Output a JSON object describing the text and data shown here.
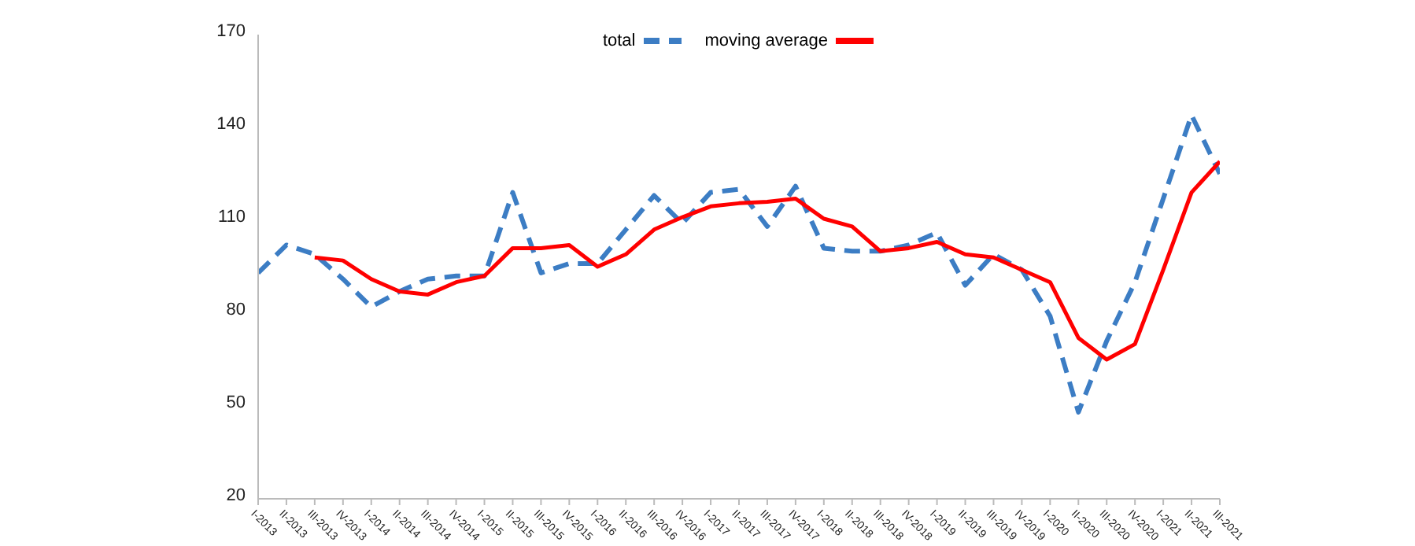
{
  "chart_data": {
    "type": "line",
    "categories": [
      "I-2013",
      "II-2013",
      "III-2013",
      "IV-2013",
      "I-2014",
      "II-2014",
      "III-2014",
      "IV-2014",
      "I-2015",
      "II-2015",
      "III-2015",
      "IV-2015",
      "I-2016",
      "II-2016",
      "III-2016",
      "IV-2016",
      "I-2017",
      "II-2017",
      "III-2017",
      "IV-2017",
      "I-2018",
      "II-2018",
      "III-2018",
      "IV-2018",
      "I-2019",
      "II-2019",
      "III-2019",
      "IV-2019",
      "I-2020",
      "II-2020",
      "III-2020",
      "IV-2020",
      "I-2021",
      "II-2021",
      "III-2021"
    ],
    "series": [
      {
        "name": "total",
        "color": "#3c7dc4",
        "line_style": "dashed",
        "values": [
          93,
          102,
          99,
          91,
          82,
          87,
          91,
          92,
          92,
          119,
          93,
          96,
          96,
          107,
          118,
          109,
          119,
          120,
          108,
          121,
          101,
          100,
          100,
          102,
          106,
          89,
          99,
          94,
          79,
          48,
          71,
          90,
          117,
          144,
          125
        ]
      },
      {
        "name": "moving average",
        "color": "#ff0000",
        "line_style": "solid",
        "values": [
          null,
          null,
          98,
          97,
          91,
          87,
          86,
          90,
          92,
          101,
          101,
          102,
          95,
          99,
          107,
          111,
          114.5,
          115.5,
          116,
          117,
          110.5,
          108,
          100,
          101,
          103,
          99,
          98,
          94,
          90,
          72,
          65,
          70,
          94,
          119,
          129
        ]
      }
    ],
    "ylim": [
      20,
      170
    ],
    "yticks": [
      20,
      50,
      80,
      110,
      140,
      170
    ],
    "grid": false,
    "legend": "top",
    "marker": "none"
  }
}
